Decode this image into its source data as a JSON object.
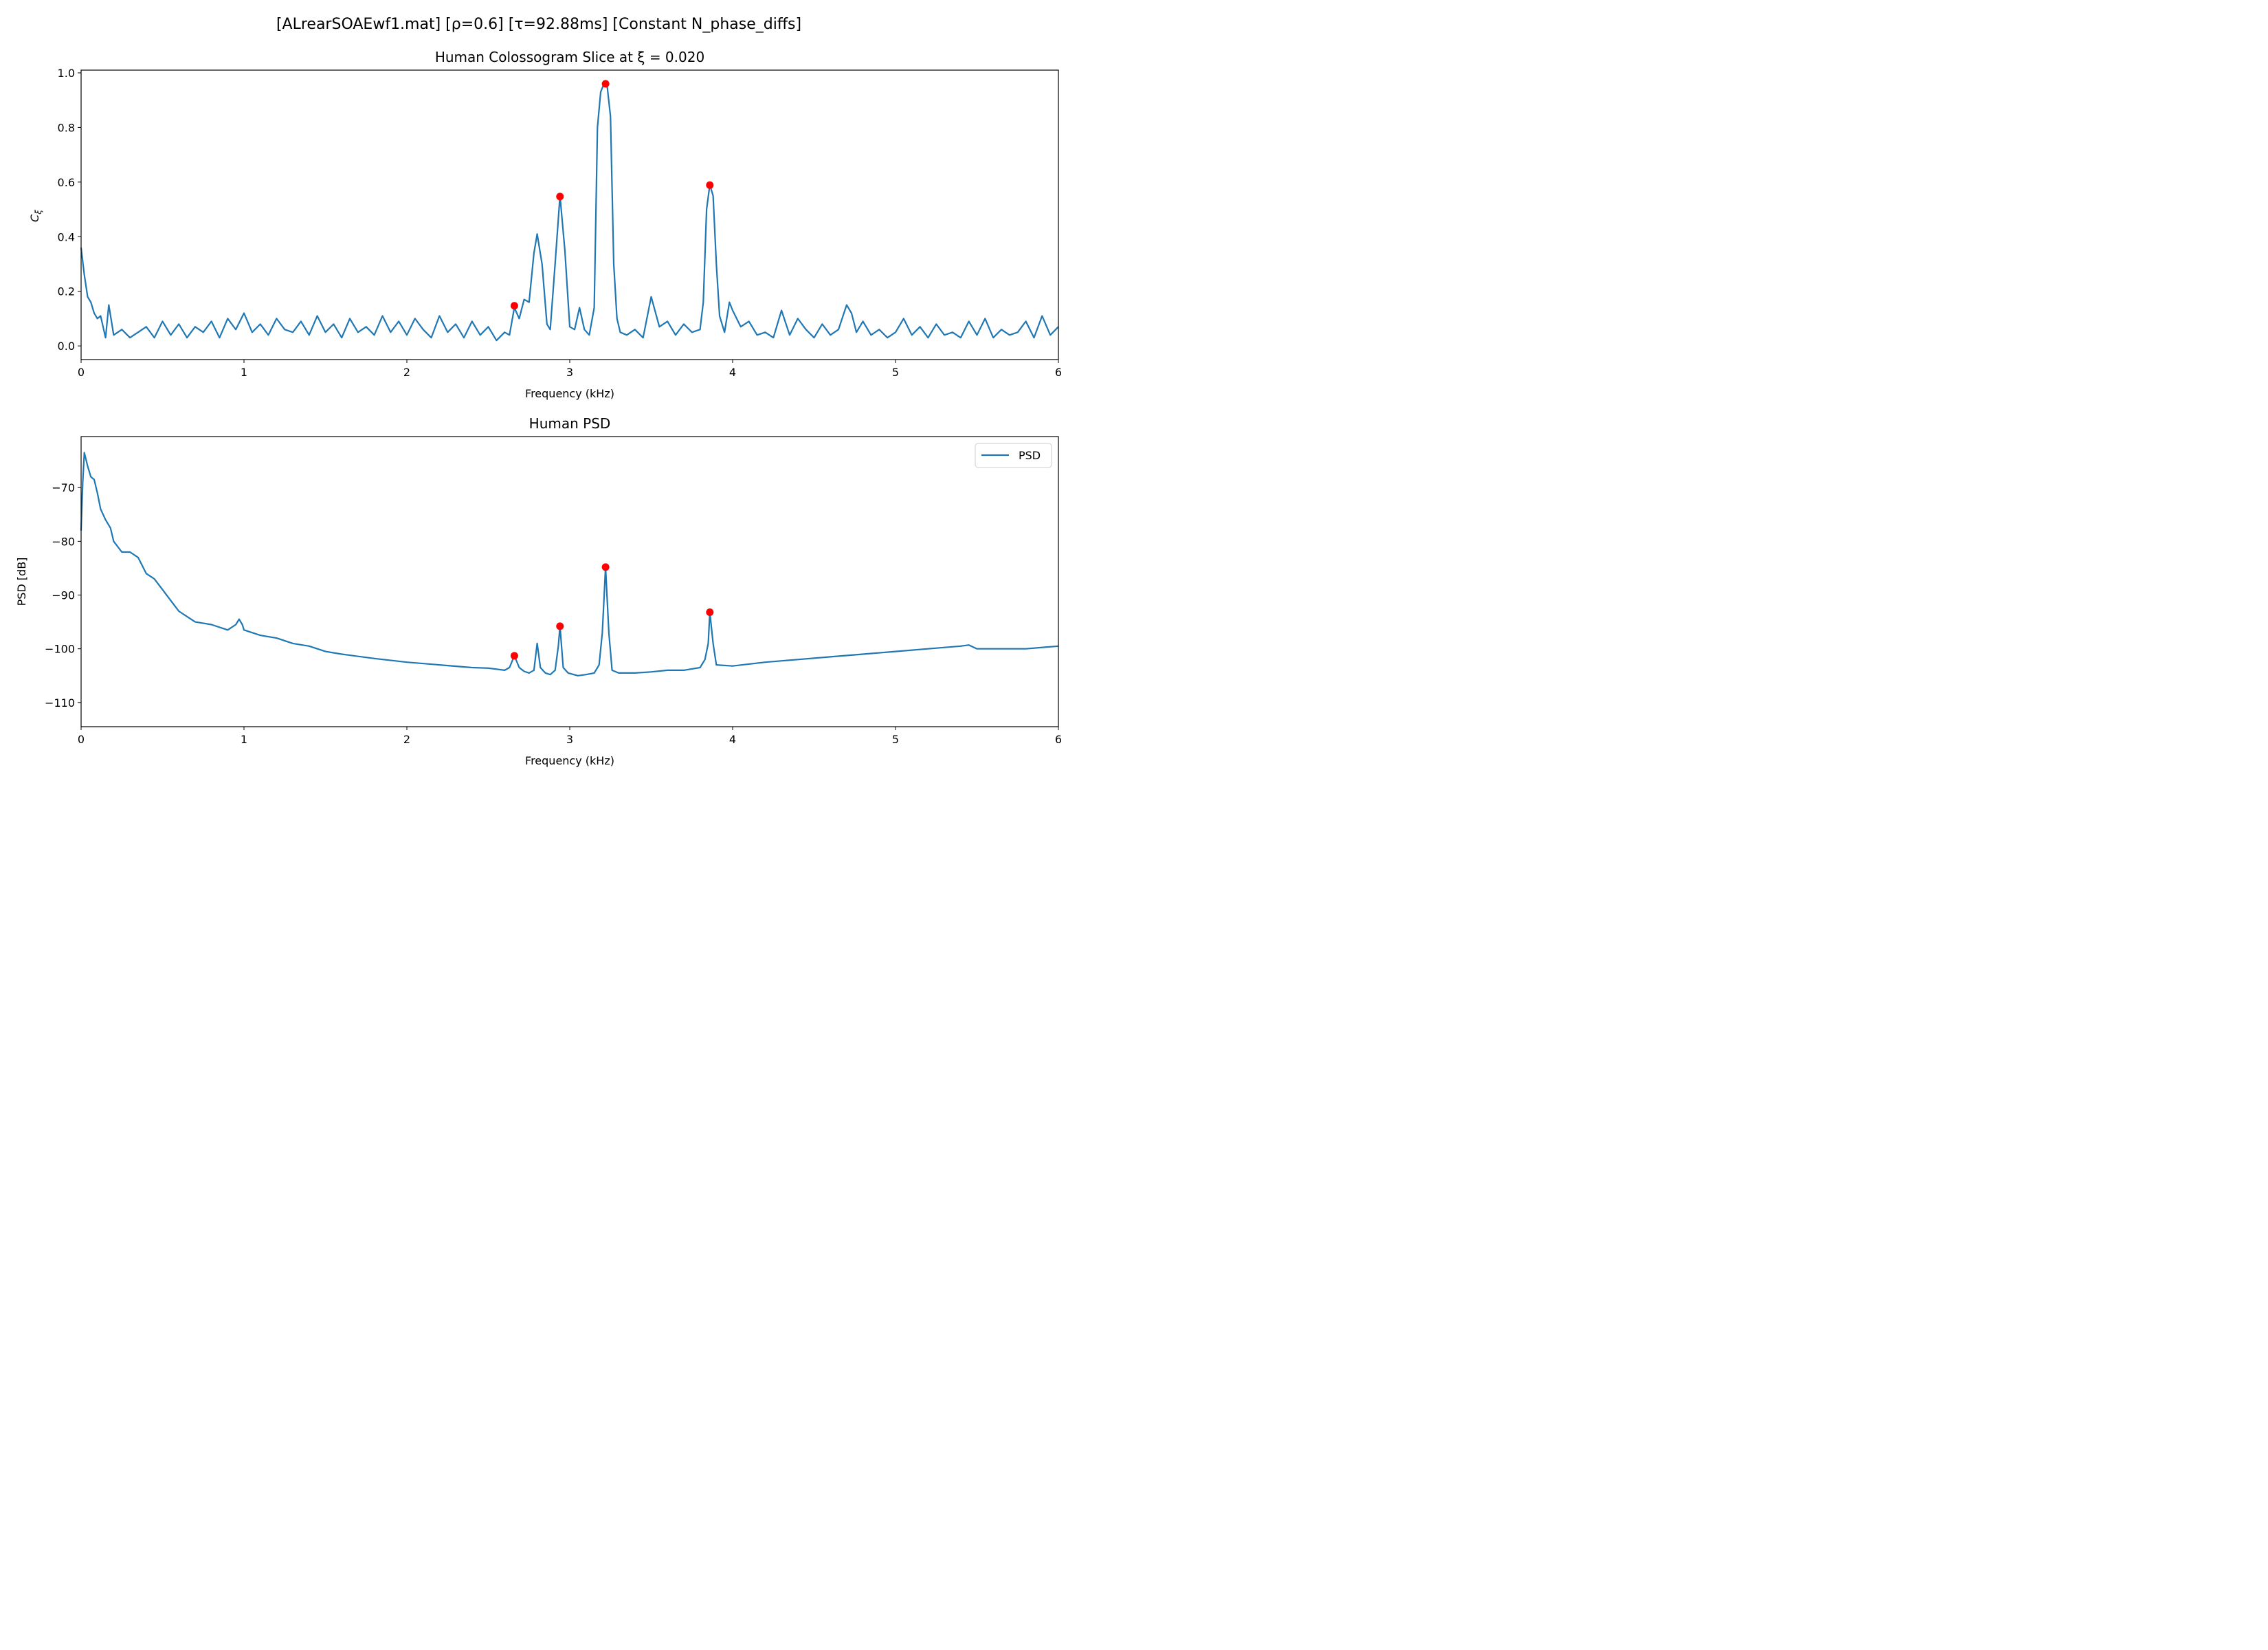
{
  "figure": {
    "suptitle": "[ALrearSOAEwf1.mat]   [ρ=0.6]   [τ=92.88ms]   [Constant N_phase_diffs]"
  },
  "colors": {
    "line": "#1f77b4",
    "peak_marker": "#ff0000",
    "axes": "#000000",
    "background": "#ffffff"
  },
  "chart_data": [
    {
      "type": "line",
      "title": "Human Colossogram Slice at ξ = 0.020",
      "xlabel": "Frequency (kHz)",
      "ylabel": "Cξ",
      "ylabel_main": "C",
      "ylabel_sub": "ξ",
      "xlim": [
        0,
        6
      ],
      "ylim": [
        -0.05,
        1.01
      ],
      "xticks": [
        0,
        1,
        2,
        3,
        4,
        5,
        6
      ],
      "xtick_labels": [
        "0",
        "1",
        "2",
        "3",
        "4",
        "5",
        "6"
      ],
      "yticks": [
        0.0,
        0.2,
        0.4,
        0.6,
        0.8,
        1.0
      ],
      "ytick_labels": [
        "0.0",
        "0.2",
        "0.4",
        "0.6",
        "0.8",
        "1.0"
      ],
      "grid": false,
      "legend": null,
      "series": [
        {
          "x": [
            0,
            0.02,
            0.04,
            0.06,
            0.08,
            0.1,
            0.12,
            0.15,
            0.17,
            0.2,
            0.25,
            0.3,
            0.35,
            0.4,
            0.45,
            0.5,
            0.55,
            0.6,
            0.65,
            0.7,
            0.75,
            0.8,
            0.85,
            0.9,
            0.95,
            1.0,
            1.05,
            1.1,
            1.15,
            1.2,
            1.25,
            1.3,
            1.35,
            1.4,
            1.45,
            1.5,
            1.55,
            1.6,
            1.65,
            1.7,
            1.75,
            1.8,
            1.85,
            1.9,
            1.95,
            2.0,
            2.05,
            2.1,
            2.15,
            2.2,
            2.25,
            2.3,
            2.35,
            2.4,
            2.45,
            2.5,
            2.55,
            2.6,
            2.63,
            2.66,
            2.69,
            2.72,
            2.75,
            2.78,
            2.8,
            2.83,
            2.86,
            2.88,
            2.91,
            2.94,
            2.97,
            3.0,
            3.03,
            3.06,
            3.09,
            3.12,
            3.15,
            3.17,
            3.19,
            3.21,
            3.23,
            3.25,
            3.27,
            3.29,
            3.31,
            3.35,
            3.4,
            3.45,
            3.5,
            3.55,
            3.6,
            3.65,
            3.7,
            3.75,
            3.8,
            3.82,
            3.84,
            3.86,
            3.88,
            3.9,
            3.92,
            3.95,
            3.98,
            4.0,
            4.05,
            4.1,
            4.15,
            4.2,
            4.25,
            4.3,
            4.35,
            4.4,
            4.45,
            4.5,
            4.55,
            4.6,
            4.65,
            4.7,
            4.73,
            4.76,
            4.8,
            4.85,
            4.9,
            4.95,
            5.0,
            5.05,
            5.1,
            5.15,
            5.2,
            5.25,
            5.3,
            5.35,
            5.4,
            5.45,
            5.5,
            5.55,
            5.6,
            5.65,
            5.7,
            5.75,
            5.8,
            5.85,
            5.9,
            5.95,
            6.0
          ],
          "y": [
            0.36,
            0.26,
            0.18,
            0.16,
            0.12,
            0.1,
            0.11,
            0.03,
            0.15,
            0.04,
            0.06,
            0.03,
            0.05,
            0.07,
            0.03,
            0.09,
            0.04,
            0.08,
            0.03,
            0.07,
            0.05,
            0.09,
            0.03,
            0.1,
            0.06,
            0.12,
            0.05,
            0.08,
            0.04,
            0.1,
            0.06,
            0.05,
            0.09,
            0.04,
            0.11,
            0.05,
            0.08,
            0.03,
            0.1,
            0.05,
            0.07,
            0.04,
            0.11,
            0.05,
            0.09,
            0.04,
            0.1,
            0.06,
            0.03,
            0.11,
            0.05,
            0.08,
            0.03,
            0.09,
            0.04,
            0.07,
            0.02,
            0.05,
            0.04,
            0.14,
            0.1,
            0.17,
            0.16,
            0.34,
            0.41,
            0.3,
            0.08,
            0.06,
            0.3,
            0.55,
            0.35,
            0.07,
            0.06,
            0.14,
            0.06,
            0.04,
            0.14,
            0.8,
            0.93,
            0.96,
            0.95,
            0.84,
            0.3,
            0.1,
            0.05,
            0.04,
            0.06,
            0.03,
            0.18,
            0.07,
            0.09,
            0.04,
            0.08,
            0.05,
            0.06,
            0.16,
            0.5,
            0.59,
            0.55,
            0.3,
            0.11,
            0.05,
            0.16,
            0.13,
            0.07,
            0.09,
            0.04,
            0.05,
            0.03,
            0.13,
            0.04,
            0.1,
            0.06,
            0.03,
            0.08,
            0.04,
            0.06,
            0.15,
            0.12,
            0.05,
            0.09,
            0.04,
            0.06,
            0.03,
            0.05,
            0.1,
            0.04,
            0.07,
            0.03,
            0.08,
            0.04,
            0.05,
            0.03,
            0.09,
            0.04,
            0.1,
            0.03,
            0.06,
            0.04,
            0.05,
            0.09,
            0.03,
            0.11,
            0.04,
            0.07
          ]
        }
      ],
      "peaks": {
        "x": [
          2.66,
          2.94,
          3.22,
          3.86
        ],
        "y": [
          0.147,
          0.547,
          0.96,
          0.589
        ]
      }
    },
    {
      "type": "line",
      "title": "Human PSD",
      "xlabel": "Frequency (kHz)",
      "ylabel": "PSD [dB]",
      "xlim": [
        0,
        6
      ],
      "ylim": [
        -114.5,
        -60.5
      ],
      "xticks": [
        0,
        1,
        2,
        3,
        4,
        5,
        6
      ],
      "xtick_labels": [
        "0",
        "1",
        "2",
        "3",
        "4",
        "5",
        "6"
      ],
      "yticks": [
        -70,
        -80,
        -90,
        -100,
        -110
      ],
      "ytick_labels": [
        "−70",
        "−80",
        "−90",
        "−100",
        "−110"
      ],
      "grid": false,
      "legend": {
        "placement": "upper right",
        "entries": [
          "PSD"
        ]
      },
      "series": [
        {
          "name": "PSD",
          "x": [
            0,
            0.01,
            0.02,
            0.04,
            0.06,
            0.08,
            0.1,
            0.12,
            0.15,
            0.18,
            0.2,
            0.25,
            0.3,
            0.35,
            0.4,
            0.45,
            0.5,
            0.55,
            0.6,
            0.7,
            0.8,
            0.9,
            0.95,
            0.97,
            0.99,
            1.0,
            1.05,
            1.1,
            1.2,
            1.3,
            1.4,
            1.5,
            1.6,
            1.8,
            2.0,
            2.2,
            2.4,
            2.5,
            2.6,
            2.63,
            2.66,
            2.69,
            2.72,
            2.75,
            2.78,
            2.8,
            2.82,
            2.85,
            2.88,
            2.91,
            2.93,
            2.94,
            2.96,
            2.99,
            3.05,
            3.1,
            3.15,
            3.18,
            3.2,
            3.22,
            3.24,
            3.26,
            3.3,
            3.4,
            3.5,
            3.6,
            3.7,
            3.8,
            3.83,
            3.85,
            3.86,
            3.88,
            3.9,
            4.0,
            4.2,
            4.4,
            4.6,
            4.8,
            5.0,
            5.2,
            5.4,
            5.45,
            5.5,
            5.6,
            5.8,
            6.0
          ],
          "y": [
            -78,
            -69,
            -63.5,
            -66,
            -68,
            -68.5,
            -71,
            -74,
            -76,
            -77.5,
            -80,
            -82,
            -82,
            -83,
            -86,
            -87,
            -89,
            -91,
            -93,
            -95,
            -95.5,
            -96.5,
            -95.5,
            -94.5,
            -95.5,
            -96.5,
            -97,
            -97.5,
            -98,
            -99,
            -99.5,
            -100.5,
            -101,
            -101.8,
            -102.5,
            -103,
            -103.5,
            -103.6,
            -104,
            -103.5,
            -101.3,
            -103.5,
            -104.2,
            -104.5,
            -104,
            -99,
            -103.5,
            -104.5,
            -104.8,
            -104,
            -99.5,
            -95.8,
            -103.5,
            -104.5,
            -105,
            -104.8,
            -104.5,
            -103,
            -97,
            -84.8,
            -97,
            -104,
            -104.5,
            -104.5,
            -104.3,
            -104,
            -104,
            -103.5,
            -102,
            -99,
            -93.2,
            -99,
            -103,
            -103.2,
            -102.5,
            -102,
            -101.5,
            -101,
            -100.5,
            -100,
            -99.5,
            -99.3,
            -100,
            -100,
            -100,
            -99.5
          ]
        }
      ],
      "peaks": {
        "x": [
          2.66,
          2.94,
          3.22,
          3.86
        ],
        "y": [
          -101.3,
          -95.8,
          -84.8,
          -93.2
        ]
      }
    }
  ]
}
